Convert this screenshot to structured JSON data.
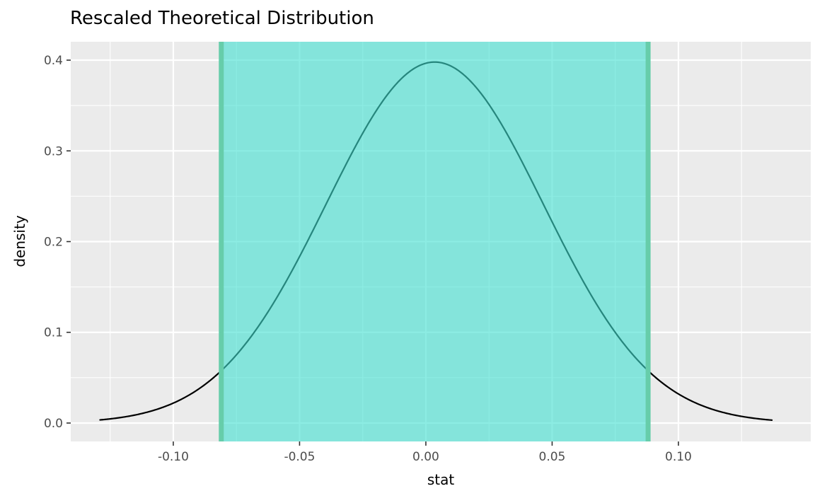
{
  "page": {
    "background": "#FFFFFF"
  },
  "chart_data": {
    "type": "line",
    "title": "Rescaled Theoretical Distribution",
    "xlabel": "stat",
    "ylabel": "density",
    "grid": true,
    "legend": false,
    "xlim": [
      -0.1406,
      0.1524
    ],
    "ylim": [
      -0.0203,
      0.4203
    ],
    "x_tick_values": [
      -0.1,
      -0.05,
      0.0,
      0.05,
      0.1
    ],
    "x_tick_labels": [
      "-0.10",
      "-0.05",
      "0.00",
      "0.05",
      "0.10"
    ],
    "x_minor_values": [
      -0.125,
      -0.075,
      -0.025,
      0.025,
      0.075,
      0.125
    ],
    "y_tick_values": [
      0.0,
      0.1,
      0.2,
      0.3,
      0.4
    ],
    "y_tick_labels": [
      "0.0",
      "0.1",
      "0.2",
      "0.3",
      "0.4"
    ],
    "y_minor_values": [
      0.05,
      0.15,
      0.25,
      0.35
    ],
    "curve": {
      "distribution": "normal",
      "mean": 0.0035,
      "sd": 0.043,
      "peak_density": 0.3979,
      "x_min": -0.129,
      "x_max": 0.137
    },
    "series": [
      {
        "name": "rescaled theoretical density",
        "points": [
          [
            -0.129,
            0.0034
          ],
          [
            -0.12,
            0.0064
          ],
          [
            -0.11,
            0.0122
          ],
          [
            -0.1,
            0.022
          ],
          [
            -0.09,
            0.0374
          ],
          [
            -0.08,
            0.0604
          ],
          [
            -0.07,
            0.0923
          ],
          [
            -0.06,
            0.1337
          ],
          [
            -0.05,
            0.1835
          ],
          [
            -0.04,
            0.2385
          ],
          [
            -0.03,
            0.2937
          ],
          [
            -0.02,
            0.3427
          ],
          [
            -0.01,
            0.3788
          ],
          [
            0.0,
            0.3966
          ],
          [
            0.01,
            0.3934
          ],
          [
            0.02,
            0.3697
          ],
          [
            0.03,
            0.3291
          ],
          [
            0.04,
            0.2775
          ],
          [
            0.05,
            0.2218
          ],
          [
            0.06,
            0.1678
          ],
          [
            0.07,
            0.1203
          ],
          [
            0.08,
            0.0818
          ],
          [
            0.09,
            0.0526
          ],
          [
            0.1,
            0.0321
          ],
          [
            0.11,
            0.0185
          ],
          [
            0.12,
            0.0101
          ],
          [
            0.13,
            0.0053
          ],
          [
            0.137,
            0.0032
          ]
        ]
      }
    ],
    "confidence_interval": {
      "lower": -0.081,
      "upper": 0.088,
      "density_at_lower": 0.062,
      "density_at_upper": 0.06
    },
    "colors": {
      "panel_bg": "#EBEBEB",
      "grid": "#FFFFFF",
      "curve": "#000000",
      "ci_fill": "#40E0D0",
      "ci_fill_opacity": 0.6,
      "ci_border": "#66CDAA",
      "tick": "#333333",
      "tick_label": "#4D4D4D",
      "axis_title": "#000000",
      "title": "#000000"
    }
  }
}
